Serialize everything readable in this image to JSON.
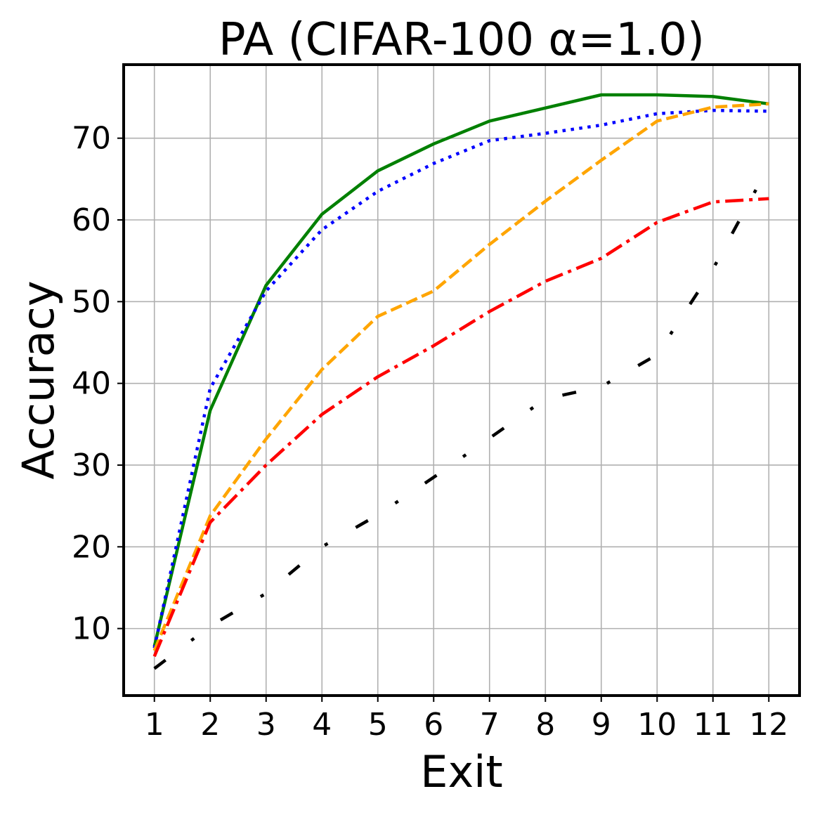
{
  "chart_data": {
    "type": "line",
    "title": "PA (CIFAR-100 α=1.0)",
    "xlabel": "Exit",
    "ylabel": "Accuracy",
    "x": [
      1,
      2,
      3,
      4,
      5,
      6,
      7,
      8,
      9,
      10,
      11,
      12
    ],
    "xlim": [
      0.45,
      12.55
    ],
    "ylim": [
      1.8,
      79.0
    ],
    "xticks": [
      1,
      2,
      3,
      4,
      5,
      6,
      7,
      8,
      9,
      10,
      11,
      12
    ],
    "yticks": [
      10,
      20,
      30,
      40,
      50,
      60,
      70
    ],
    "grid": true,
    "series": [
      {
        "color": "#008000",
        "dash": "solid",
        "values": [
          7.8,
          36.7,
          52.0,
          60.7,
          66.0,
          69.3,
          72.1,
          73.7,
          75.3,
          75.3,
          75.1,
          74.2
        ]
      },
      {
        "color": "#0000ff",
        "dash": "dotted",
        "values": [
          7.6,
          39.4,
          51.3,
          58.8,
          63.5,
          66.9,
          69.7,
          70.6,
          71.6,
          73.0,
          73.4,
          73.3
        ]
      },
      {
        "color": "#ffa500",
        "dash": "dashed",
        "values": [
          7.3,
          23.8,
          33.2,
          41.7,
          48.2,
          51.3,
          57.0,
          62.3,
          67.3,
          72.1,
          73.8,
          74.2
        ]
      },
      {
        "color": "#ff0000",
        "dash": "dashdot",
        "values": [
          6.6,
          23.0,
          30.0,
          36.2,
          40.8,
          44.6,
          48.8,
          52.5,
          55.3,
          59.7,
          62.2,
          62.6
        ]
      },
      {
        "color": "#000000",
        "dash": "loosedashdot",
        "values": [
          5.1,
          10.3,
          14.3,
          20.0,
          23.9,
          28.5,
          33.3,
          38.1,
          39.6,
          43.5,
          54.0,
          66.6
        ]
      }
    ]
  }
}
